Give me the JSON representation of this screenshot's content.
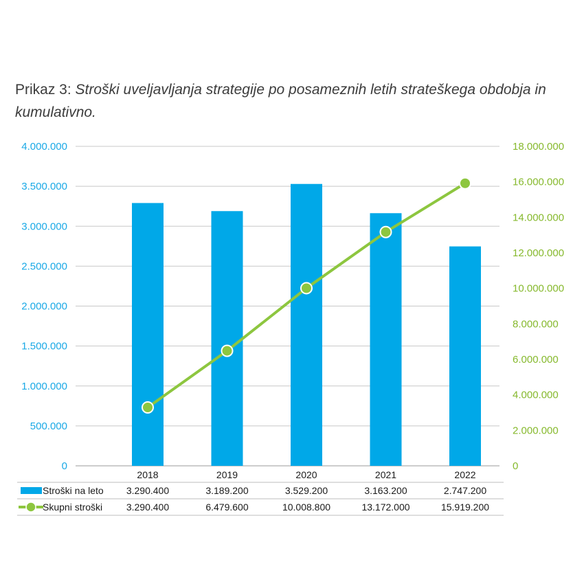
{
  "title": {
    "lead": "Prikaz 3: ",
    "rest": "Stroški uveljavljanja strategije po posameznih letih strateškega obdobja in kumulativno."
  },
  "colors": {
    "bar": "#00a8e8",
    "line": "#8dc63f",
    "left_axis": "#1aa9e6",
    "right_axis": "#86b92d"
  },
  "chart_data": {
    "type": "bar",
    "categories": [
      "2018",
      "2019",
      "2020",
      "2021",
      "2022"
    ],
    "series": [
      {
        "name": "Stroški na leto",
        "type": "bar",
        "axis": "left",
        "values": [
          3290400,
          3189200,
          3529200,
          3163200,
          2747200
        ]
      },
      {
        "name": "Skupni stroški",
        "type": "line",
        "axis": "right",
        "values": [
          3290400,
          6479600,
          10008800,
          13172000,
          15919200
        ]
      }
    ],
    "y_left": {
      "ylim": [
        0,
        4000000
      ],
      "ticks": [
        "0",
        "500.000",
        "1.000.000",
        "1.500.000",
        "2.000.000",
        "2.500.000",
        "3.000.000",
        "3.500.000",
        "4.000.000"
      ]
    },
    "y_right": {
      "ylim": [
        0,
        18000000
      ],
      "ticks": [
        "0",
        "2.000.000",
        "4.000.000",
        "6.000.000",
        "8.000.000",
        "10.000.000",
        "12.000.000",
        "14.000.000",
        "16.000.000",
        "18.000.000"
      ]
    },
    "table": [
      {
        "label": "Stroški na leto",
        "cells": [
          "3.290.400",
          "3.189.200",
          "3.529.200",
          "3.163.200",
          "2.747.200"
        ]
      },
      {
        "label": "Skupni stroški",
        "cells": [
          "3.290.400",
          "6.479.600",
          "10.008.800",
          "13.172.000",
          "15.919.200"
        ]
      }
    ],
    "grid": true,
    "legend": "data-table"
  }
}
